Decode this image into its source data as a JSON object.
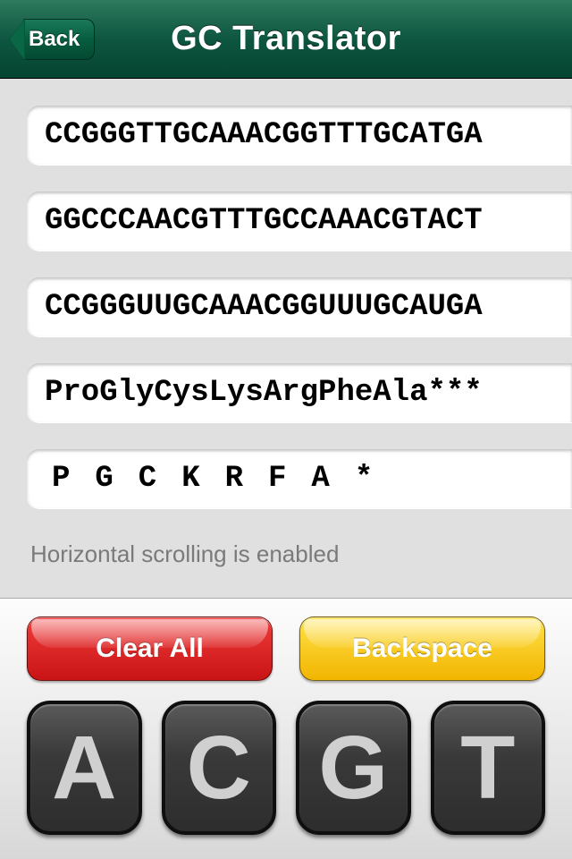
{
  "header": {
    "back_label": "Back",
    "title": "GC Translator"
  },
  "fields": {
    "dna_sense": "CCGGGTTGCAAACGGTTTGCATGA",
    "dna_antisense": "GGCCCAACGTTTGCCAAACGTACT",
    "rna": "CCGGGUUGCAAACGGUUUGCAUGA",
    "protein_long": "ProGlyCysLysArgPheAla***",
    "protein_short": "PGCKRFA*"
  },
  "hint": "Horizontal scrolling is enabled",
  "buttons": {
    "clear": "Clear All",
    "backspace": "Backspace",
    "nucleotides": {
      "a": "A",
      "c": "C",
      "g": "G",
      "t": "T"
    }
  },
  "colors": {
    "header_bg": "#0e5640",
    "clear_bg": "#c81414",
    "backspace_bg": "#f2b500",
    "nuc_bg": "#3a3a3a",
    "content_bg": "#e0e0e0"
  }
}
